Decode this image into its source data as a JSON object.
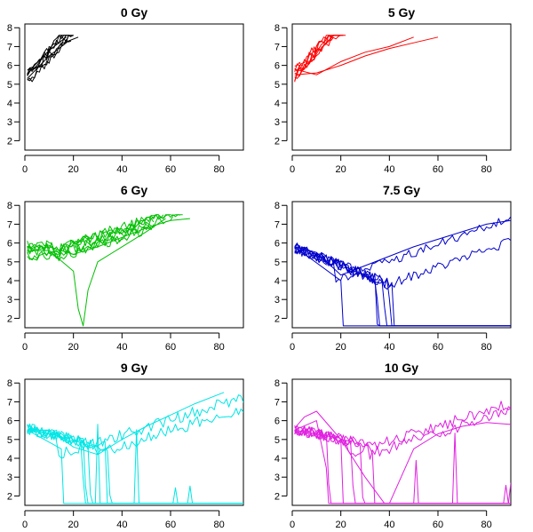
{
  "chart_data": [
    {
      "type": "line",
      "title": "0 Gy",
      "color": "#000000",
      "shape": "growth",
      "traces": 8,
      "xlim": [
        0,
        90
      ],
      "ylim": [
        1.5,
        8.2
      ],
      "xticks": [
        0,
        20,
        40,
        60,
        80
      ],
      "yticks": [
        2,
        3,
        4,
        5,
        6,
        7,
        8
      ],
      "grid": false,
      "legend": "none",
      "xlabel": "",
      "ylabel": "",
      "series": [
        {
          "x": [
            1,
            4,
            7,
            10,
            14,
            18,
            22
          ],
          "y": [
            5.3,
            5.7,
            6.1,
            6.5,
            6.9,
            7.3,
            7.5
          ]
        },
        {
          "x": [
            1,
            4,
            7,
            10,
            14,
            17
          ],
          "y": [
            5.5,
            6.0,
            6.4,
            6.8,
            7.2,
            7.5
          ]
        }
      ]
    },
    {
      "type": "line",
      "title": "5 Gy",
      "color": "#ff0000",
      "shape": "growth",
      "traces": 9,
      "xlim": [
        0,
        90
      ],
      "ylim": [
        1.5,
        8.2
      ],
      "xticks": [
        0,
        20,
        40,
        60,
        80
      ],
      "yticks": [
        2,
        3,
        4,
        5,
        6,
        7,
        8
      ],
      "grid": false,
      "legend": "none",
      "xlabel": "",
      "ylabel": "",
      "series": [
        {
          "x": [
            1,
            10,
            20,
            30,
            40,
            50,
            60
          ],
          "y": [
            5.5,
            5.6,
            6.0,
            6.5,
            6.9,
            7.2,
            7.5
          ]
        },
        {
          "x": [
            1,
            10,
            20,
            30,
            40,
            50
          ],
          "y": [
            5.8,
            5.5,
            6.2,
            6.7,
            7.0,
            7.5
          ]
        }
      ]
    },
    {
      "type": "line",
      "title": "6 Gy",
      "color": "#00c000",
      "shape": "dip",
      "traces": 9,
      "xlim": [
        0,
        90
      ],
      "ylim": [
        1.5,
        8.2
      ],
      "xticks": [
        0,
        20,
        40,
        60,
        80
      ],
      "yticks": [
        2,
        3,
        4,
        5,
        6,
        7,
        8
      ],
      "grid": false,
      "legend": "none",
      "xlabel": "",
      "ylabel": "",
      "series": [
        {
          "x": [
            1,
            10,
            20,
            30,
            40,
            50,
            60,
            68
          ],
          "y": [
            5.5,
            5.8,
            5.4,
            5.8,
            6.3,
            6.8,
            7.2,
            7.3
          ]
        },
        {
          "x": [
            1,
            10,
            20,
            22,
            24,
            26,
            30,
            40,
            50,
            58
          ],
          "y": [
            5.6,
            5.6,
            4.5,
            2.5,
            1.6,
            3.5,
            5.0,
            5.8,
            6.6,
            7.3
          ]
        }
      ]
    },
    {
      "type": "line",
      "title": "7.5 Gy",
      "color": "#0000cc",
      "shape": "collapse",
      "traces": 9,
      "xlim": [
        0,
        90
      ],
      "ylim": [
        1.5,
        8.2
      ],
      "xticks": [
        0,
        20,
        40,
        60,
        80
      ],
      "yticks": [
        2,
        3,
        4,
        5,
        6,
        7,
        8
      ],
      "grid": false,
      "legend": "none",
      "xlabel": "",
      "ylabel": "",
      "series": [
        {
          "x": [
            1,
            10,
            20,
            30,
            40,
            50,
            60,
            70,
            80,
            90
          ],
          "y": [
            5.8,
            5.5,
            4.3,
            4.8,
            5.3,
            5.8,
            6.2,
            6.6,
            7.0,
            7.2
          ]
        },
        {
          "x": [
            1,
            20,
            21,
            90
          ],
          "y": [
            5.8,
            4.0,
            1.6,
            1.6
          ]
        }
      ]
    },
    {
      "type": "line",
      "title": "9 Gy",
      "color": "#00e5e5",
      "shape": "severe",
      "traces": 9,
      "xlim": [
        0,
        90
      ],
      "ylim": [
        1.5,
        8.2
      ],
      "xticks": [
        0,
        20,
        40,
        60,
        80
      ],
      "yticks": [
        2,
        3,
        4,
        5,
        6,
        7,
        8
      ],
      "grid": false,
      "legend": "none",
      "xlabel": "",
      "ylabel": "",
      "series": [
        {
          "x": [
            1,
            10,
            20,
            30,
            40,
            50,
            60,
            70,
            82
          ],
          "y": [
            5.5,
            5.5,
            4.6,
            4.2,
            5.0,
            5.7,
            6.3,
            6.9,
            7.5
          ]
        },
        {
          "x": [
            1,
            15,
            16,
            90
          ],
          "y": [
            5.5,
            4.5,
            1.6,
            1.6
          ]
        }
      ]
    },
    {
      "type": "line",
      "title": "10 Gy",
      "color": "#e020e0",
      "shape": "severe",
      "traces": 9,
      "xlim": [
        0,
        90
      ],
      "ylim": [
        1.5,
        8.2
      ],
      "xticks": [
        0,
        20,
        40,
        60,
        80
      ],
      "yticks": [
        2,
        3,
        4,
        5,
        6,
        7,
        8
      ],
      "grid": false,
      "legend": "none",
      "xlabel": "",
      "ylabel": "",
      "series": [
        {
          "x": [
            1,
            5,
            10,
            20,
            30,
            38,
            40,
            50,
            60,
            70,
            80,
            90
          ],
          "y": [
            5.6,
            6.2,
            6.5,
            5.0,
            3.0,
            1.6,
            1.6,
            4.5,
            5.3,
            5.7,
            5.9,
            5.8
          ]
        },
        {
          "x": [
            1,
            10,
            14,
            15,
            90
          ],
          "y": [
            5.5,
            6.0,
            3.5,
            1.6,
            1.6
          ]
        }
      ]
    }
  ]
}
